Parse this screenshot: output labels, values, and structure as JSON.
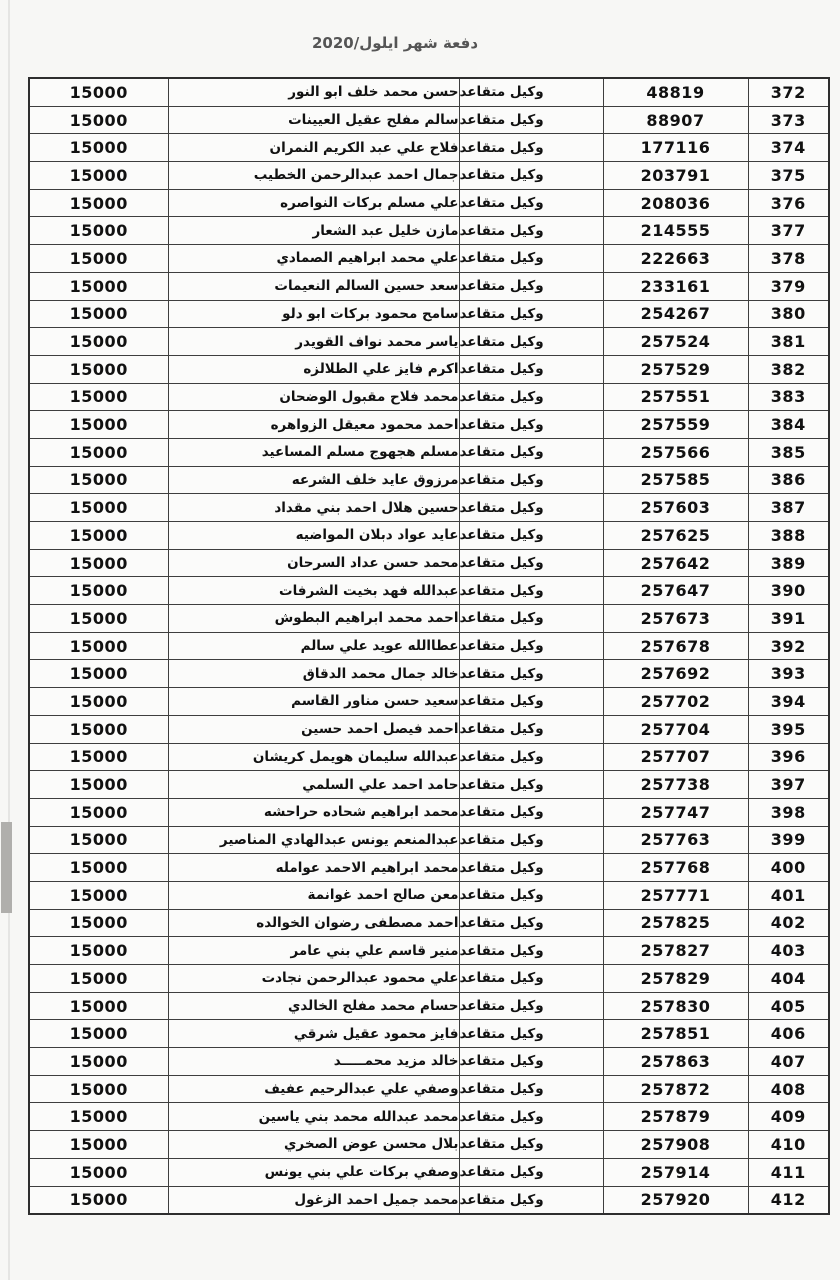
{
  "page": {
    "title": "دفعة شهر ايلول/2020"
  },
  "table": {
    "status_label": "وكيل متقاعد",
    "amount_label": "15000",
    "rows": [
      {
        "serial": "372",
        "id": "48819",
        "status": "وكيل متقاعد",
        "name": "حسن محمد خلف ابو النور",
        "amount": "15000"
      },
      {
        "serial": "373",
        "id": "88907",
        "status": "وكيل متقاعد",
        "name": "سالم مفلح عقيل العيينات",
        "amount": "15000"
      },
      {
        "serial": "374",
        "id": "177116",
        "status": "وكيل متقاعد",
        "name": "فلاح علي عبد الكريم النمران",
        "amount": "15000"
      },
      {
        "serial": "375",
        "id": "203791",
        "status": "وكيل متقاعد",
        "name": "جمال احمد عبدالرحمن الخطيب",
        "amount": "15000"
      },
      {
        "serial": "376",
        "id": "208036",
        "status": "وكيل متقاعد",
        "name": "علي مسلم بركات النواصره",
        "amount": "15000"
      },
      {
        "serial": "377",
        "id": "214555",
        "status": "وكيل متقاعد",
        "name": "مازن خليل عبد الشعار",
        "amount": "15000"
      },
      {
        "serial": "378",
        "id": "222663",
        "status": "وكيل متقاعد",
        "name": "علي محمد ابراهيم الصمادي",
        "amount": "15000"
      },
      {
        "serial": "379",
        "id": "233161",
        "status": "وكيل متقاعد",
        "name": "سعد حسين السالم النعيمات",
        "amount": "15000"
      },
      {
        "serial": "380",
        "id": "254267",
        "status": "وكيل متقاعد",
        "name": "سامح محمود بركات ابو دلو",
        "amount": "15000"
      },
      {
        "serial": "381",
        "id": "257524",
        "status": "وكيل متقاعد",
        "name": "ياسر محمد نواف القويدر",
        "amount": "15000"
      },
      {
        "serial": "382",
        "id": "257529",
        "status": "وكيل متقاعد",
        "name": "اكرم فايز علي الطلالزه",
        "amount": "15000"
      },
      {
        "serial": "383",
        "id": "257551",
        "status": "وكيل متقاعد",
        "name": "محمد فلاح مقبول الوضحان",
        "amount": "15000"
      },
      {
        "serial": "384",
        "id": "257559",
        "status": "وكيل متقاعد",
        "name": "احمد محمود معيقل الزواهره",
        "amount": "15000"
      },
      {
        "serial": "385",
        "id": "257566",
        "status": "وكيل متقاعد",
        "name": "مسلم هجهوج مسلم المساعيد",
        "amount": "15000"
      },
      {
        "serial": "386",
        "id": "257585",
        "status": "وكيل متقاعد",
        "name": "مرزوق عايد خلف الشرعه",
        "amount": "15000"
      },
      {
        "serial": "387",
        "id": "257603",
        "status": "وكيل متقاعد",
        "name": "حسين هلال احمد بني مقداد",
        "amount": "15000"
      },
      {
        "serial": "388",
        "id": "257625",
        "status": "وكيل متقاعد",
        "name": "عايد عواد دبلان المواضيه",
        "amount": "15000"
      },
      {
        "serial": "389",
        "id": "257642",
        "status": "وكيل متقاعد",
        "name": "محمد حسن عداد السرحان",
        "amount": "15000"
      },
      {
        "serial": "390",
        "id": "257647",
        "status": "وكيل متقاعد",
        "name": "عبدالله فهد بخيت الشرفات",
        "amount": "15000"
      },
      {
        "serial": "391",
        "id": "257673",
        "status": "وكيل متقاعد",
        "name": "احمد محمد ابراهيم البطوش",
        "amount": "15000"
      },
      {
        "serial": "392",
        "id": "257678",
        "status": "وكيل متقاعد",
        "name": "عطاالله عويد علي سالم",
        "amount": "15000"
      },
      {
        "serial": "393",
        "id": "257692",
        "status": "وكيل متقاعد",
        "name": "خالد جمال محمد الدقاق",
        "amount": "15000"
      },
      {
        "serial": "394",
        "id": "257702",
        "status": "وكيل متقاعد",
        "name": "سعيد حسن مناور القاسم",
        "amount": "15000"
      },
      {
        "serial": "395",
        "id": "257704",
        "status": "وكيل متقاعد",
        "name": "احمد فيصل احمد حسين",
        "amount": "15000"
      },
      {
        "serial": "396",
        "id": "257707",
        "status": "وكيل متقاعد",
        "name": "عبدالله سليمان هويمل كريشان",
        "amount": "15000"
      },
      {
        "serial": "397",
        "id": "257738",
        "status": "وكيل متقاعد",
        "name": "حامد احمد علي السلمي",
        "amount": "15000"
      },
      {
        "serial": "398",
        "id": "257747",
        "status": "وكيل متقاعد",
        "name": "محمد ابراهيم شحاده حراحشه",
        "amount": "15000"
      },
      {
        "serial": "399",
        "id": "257763",
        "status": "وكيل متقاعد",
        "name": "عبدالمنعم يونس عبدالهادي المناصير",
        "amount": "15000"
      },
      {
        "serial": "400",
        "id": "257768",
        "status": "وكيل متقاعد",
        "name": "محمد ابراهيم الاحمد عوامله",
        "amount": "15000"
      },
      {
        "serial": "401",
        "id": "257771",
        "status": "وكيل متقاعد",
        "name": "معن صالح احمد غوانمة",
        "amount": "15000"
      },
      {
        "serial": "402",
        "id": "257825",
        "status": "وكيل متقاعد",
        "name": "احمد مصطفى رضوان الخوالده",
        "amount": "15000"
      },
      {
        "serial": "403",
        "id": "257827",
        "status": "وكيل متقاعد",
        "name": "منير قاسم علي بني عامر",
        "amount": "15000"
      },
      {
        "serial": "404",
        "id": "257829",
        "status": "وكيل متقاعد",
        "name": "علي محمود عبدالرحمن نجادت",
        "amount": "15000"
      },
      {
        "serial": "405",
        "id": "257830",
        "status": "وكيل متقاعد",
        "name": "حسام محمد مفلح الخالدي",
        "amount": "15000"
      },
      {
        "serial": "406",
        "id": "257851",
        "status": "وكيل متقاعد",
        "name": "فايز محمود عقيل شرقي",
        "amount": "15000"
      },
      {
        "serial": "407",
        "id": "257863",
        "status": "وكيل متقاعد",
        "name": "خالد مزيد محمـــــد",
        "amount": "15000"
      },
      {
        "serial": "408",
        "id": "257872",
        "status": "وكيل متقاعد",
        "name": "وصفي علي عبدالرحيم عفيف",
        "amount": "15000"
      },
      {
        "serial": "409",
        "id": "257879",
        "status": "وكيل متقاعد",
        "name": "محمد عبدالله محمد بني ياسين",
        "amount": "15000"
      },
      {
        "serial": "410",
        "id": "257908",
        "status": "وكيل متقاعد",
        "name": "بلال محسن عوض الصخري",
        "amount": "15000"
      },
      {
        "serial": "411",
        "id": "257914",
        "status": "وكيل متقاعد",
        "name": "وصفي بركات علي بني يونس",
        "amount": "15000"
      },
      {
        "serial": "412",
        "id": "257920",
        "status": "وكيل متقاعد",
        "name": "محمد جميل احمد الزغول",
        "amount": "15000"
      }
    ]
  },
  "colors": {
    "paper": "#f7f7f5",
    "table_border": "#3e3e3e",
    "text": "#111111",
    "title_text": "#555555",
    "scan_mark": "#b0afac"
  }
}
